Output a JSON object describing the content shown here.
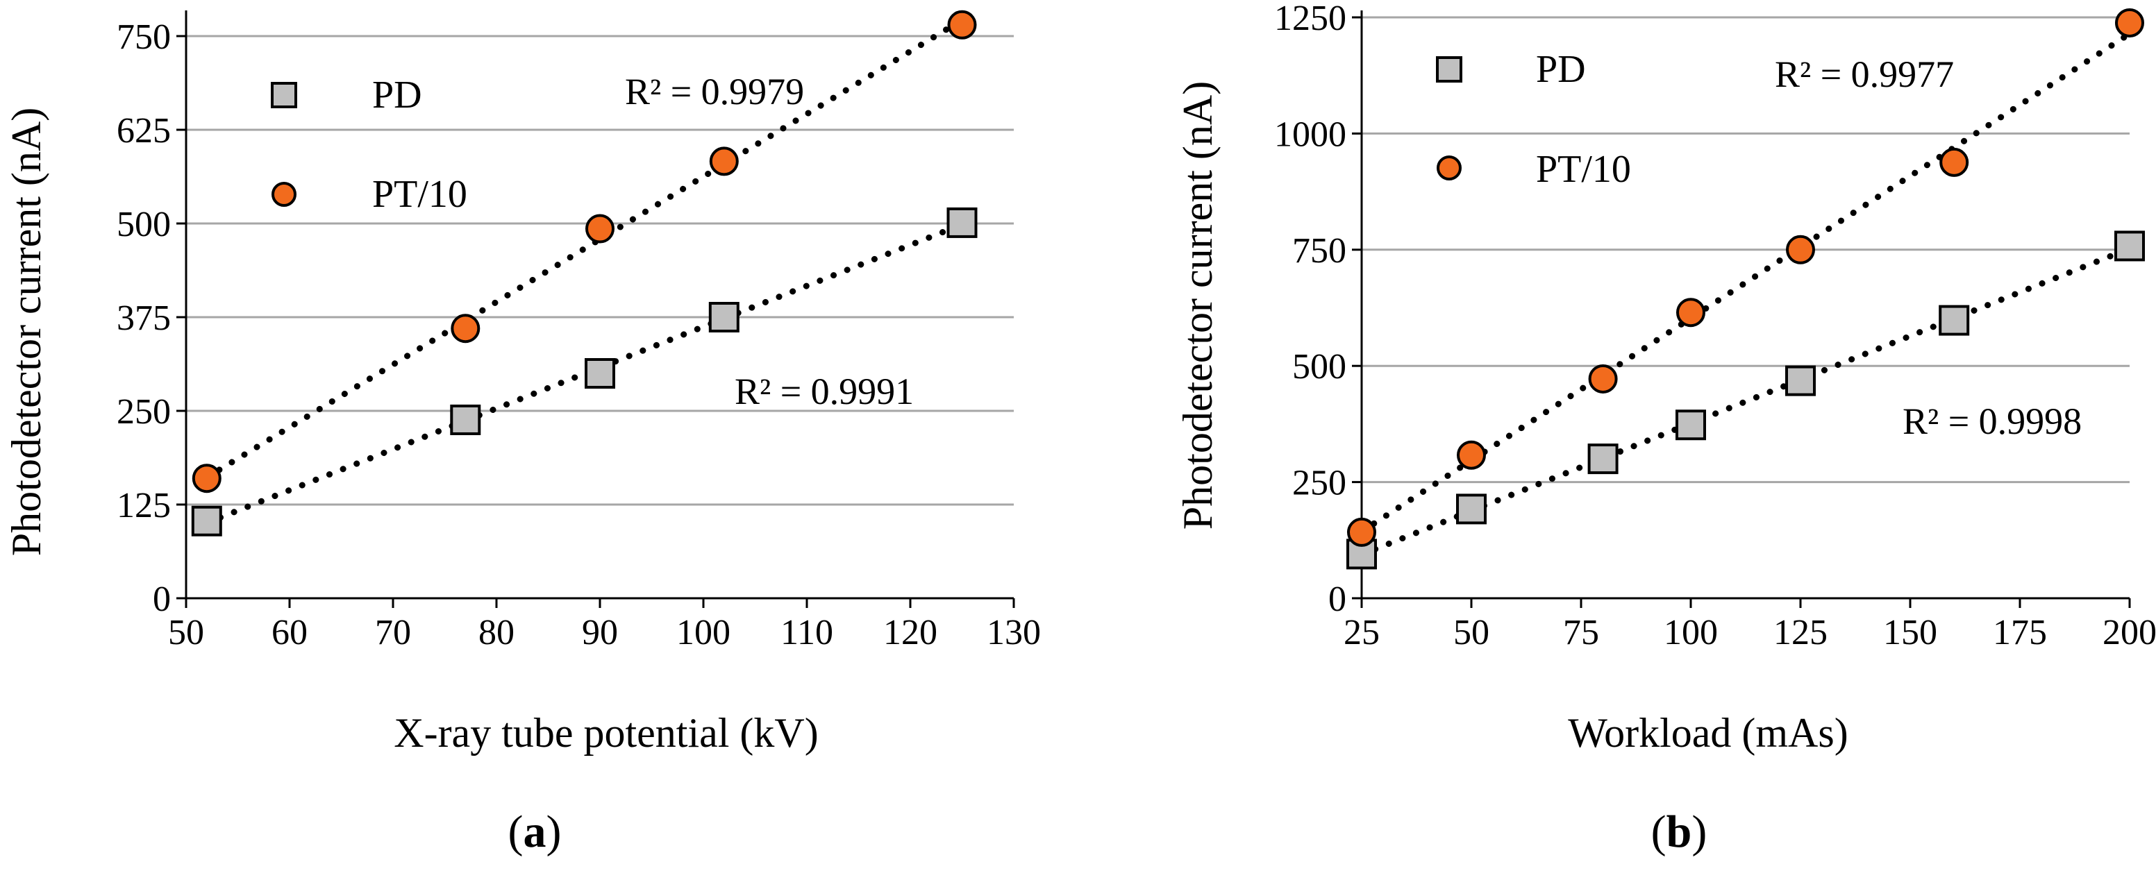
{
  "figure": {
    "panels": [
      {
        "id": "a",
        "label_open": "(",
        "label_letter": "a",
        "label_close": ")"
      },
      {
        "id": "b",
        "label_open": "(",
        "label_letter": "b",
        "label_close": ")"
      }
    ]
  },
  "colors": {
    "pd_fill": "#c0c0c0",
    "pt_fill": "#f26b1d",
    "marker_stroke": "#000000",
    "grid": "#a6a6a6",
    "trend": "#000000"
  },
  "chart_data": [
    {
      "type": "scatter",
      "title": "",
      "xlabel": "X-ray tube potential (kV)",
      "ylabel": "Photodetector current (nA)",
      "xlim": [
        50,
        130
      ],
      "ylim": [
        0,
        775
      ],
      "xticks": [
        50,
        60,
        70,
        80,
        90,
        100,
        110,
        120,
        130
      ],
      "yticks": [
        0,
        125,
        250,
        375,
        500,
        625,
        750
      ],
      "grid": "horizontal",
      "legend_position": "top-left",
      "series": [
        {
          "name": "PD",
          "marker": "square",
          "x": [
            52,
            77,
            90,
            102,
            125
          ],
          "y": [
            103,
            238,
            300,
            375,
            501
          ],
          "trendline": "linear",
          "r2_text": "R² = 0.9991"
        },
        {
          "name": "PT/10",
          "marker": "circle",
          "x": [
            52,
            77,
            90,
            102,
            125
          ],
          "y": [
            160,
            360,
            493,
            583,
            765
          ],
          "trendline": "linear",
          "r2_text": "R² = 0.9979"
        }
      ]
    },
    {
      "type": "scatter",
      "title": "",
      "xlabel": "Workload (mAs)",
      "ylabel": "Photodetector current (nA)",
      "xlim": [
        25,
        200
      ],
      "ylim": [
        0,
        1250
      ],
      "xticks": [
        25,
        50,
        75,
        100,
        125,
        150,
        175,
        200
      ],
      "yticks": [
        0,
        250,
        500,
        750,
        1000,
        1250
      ],
      "grid": "horizontal",
      "legend_position": "top-left",
      "series": [
        {
          "name": "PD",
          "marker": "square",
          "x": [
            25,
            50,
            80,
            100,
            125,
            160,
            200
          ],
          "y": [
            95,
            192,
            300,
            373,
            468,
            598,
            758
          ],
          "trendline": "linear",
          "r2_text": "R² = 0.9998"
        },
        {
          "name": "PT/10",
          "marker": "circle",
          "x": [
            25,
            50,
            80,
            100,
            125,
            160,
            200
          ],
          "y": [
            142,
            308,
            472,
            615,
            750,
            938,
            1238
          ],
          "trendline": "linear",
          "r2_text": "R² = 0.9977"
        }
      ]
    }
  ]
}
